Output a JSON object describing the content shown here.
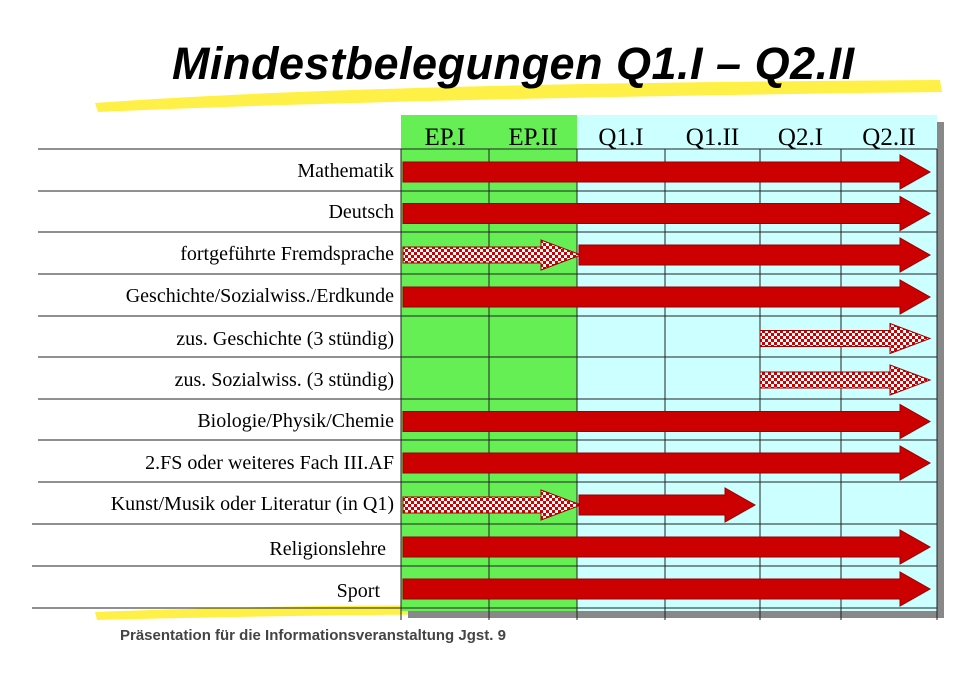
{
  "title": "Mindestbelegungen Q1.I – Q2.II",
  "footer": "Präsentation für die Informationsveranstaltung Jgst. 9",
  "colors": {
    "ep_column_fill": "#66ee55",
    "q_column_fill": "#ccffff",
    "mandatory_arrow": "#cc0000",
    "optional_arrow": "#cc0000",
    "highlighter": "#ffee33"
  },
  "columns": [
    "EP.I",
    "EP.II",
    "Q1.I",
    "Q1.II",
    "Q2.I",
    "Q2.II"
  ],
  "rows": [
    {
      "label": "Mathematik",
      "arrows": [
        {
          "style": "solid",
          "from": 0,
          "to": 6
        }
      ]
    },
    {
      "label": "Deutsch",
      "arrows": [
        {
          "style": "solid",
          "from": 0,
          "to": 6
        }
      ]
    },
    {
      "label": "fortgeführte Fremdsprache",
      "arrows": [
        {
          "style": "checkered",
          "from": 0,
          "to": 2
        },
        {
          "style": "solid",
          "from": 2,
          "to": 6
        }
      ]
    },
    {
      "label": "Geschichte/Sozialwiss./Erdkunde",
      "arrows": [
        {
          "style": "solid",
          "from": 0,
          "to": 6
        }
      ]
    },
    {
      "label": "zus. Geschichte (3 stündig)",
      "arrows": [
        {
          "style": "checkered",
          "from": 4,
          "to": 6
        }
      ]
    },
    {
      "label": "zus. Sozialwiss. (3 stündig)",
      "arrows": [
        {
          "style": "checkered",
          "from": 4,
          "to": 6
        }
      ]
    },
    {
      "label": "Biologie/Physik/Chemie",
      "arrows": [
        {
          "style": "solid",
          "from": 0,
          "to": 6
        }
      ]
    },
    {
      "label": "2.FS oder weiteres Fach III.AF",
      "arrows": [
        {
          "style": "solid",
          "from": 0,
          "to": 6
        }
      ]
    },
    {
      "label": "Kunst/Musik oder Literatur (in Q1)",
      "arrows": [
        {
          "style": "checkered",
          "from": 0,
          "to": 2
        },
        {
          "style": "solid",
          "from": 2,
          "to": 4
        }
      ]
    },
    {
      "label": "Religionslehre",
      "arrows": [
        {
          "style": "solid",
          "from": 0,
          "to": 6
        }
      ]
    },
    {
      "label": "Sport",
      "arrows": [
        {
          "style": "solid",
          "from": 0,
          "to": 6
        }
      ]
    }
  ]
}
